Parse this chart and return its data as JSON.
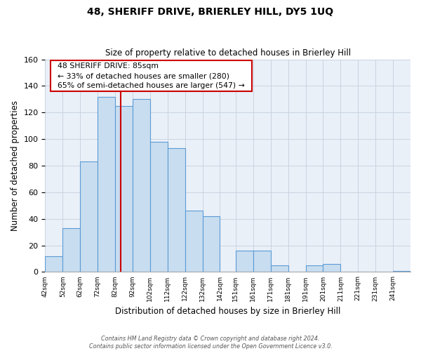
{
  "title": "48, SHERIFF DRIVE, BRIERLEY HILL, DY5 1UQ",
  "subtitle": "Size of property relative to detached houses in Brierley Hill",
  "xlabel": "Distribution of detached houses by size in Brierley Hill",
  "ylabel": "Number of detached properties",
  "bin_edges": [
    42,
    52,
    62,
    72,
    82,
    92,
    102,
    112,
    122,
    132,
    142,
    151,
    161,
    171,
    181,
    191,
    201,
    211,
    221,
    231,
    241,
    251
  ],
  "bar_heights": [
    12,
    33,
    83,
    132,
    125,
    130,
    98,
    93,
    46,
    42,
    0,
    16,
    16,
    5,
    0,
    5,
    6,
    0,
    0,
    0,
    1
  ],
  "bar_color": "#c8ddf0",
  "bar_edge_color": "#5b9bd5",
  "vline_x": 85,
  "vline_color": "#cc0000",
  "ylim": [
    0,
    160
  ],
  "yticks": [
    0,
    20,
    40,
    60,
    80,
    100,
    120,
    140,
    160
  ],
  "annotation_title": "48 SHERIFF DRIVE: 85sqm",
  "annotation_line1": "← 33% of detached houses are smaller (280)",
  "annotation_line2": "65% of semi-detached houses are larger (547) →",
  "footer_line1": "Contains HM Land Registry data © Crown copyright and database right 2024.",
  "footer_line2": "Contains public sector information licensed under the Open Government Licence v3.0.",
  "tick_labels": [
    "42sqm",
    "52sqm",
    "62sqm",
    "72sqm",
    "82sqm",
    "92sqm",
    "102sqm",
    "112sqm",
    "122sqm",
    "132sqm",
    "142sqm",
    "151sqm",
    "161sqm",
    "171sqm",
    "181sqm",
    "191sqm",
    "201sqm",
    "211sqm",
    "221sqm",
    "231sqm",
    "241sqm"
  ],
  "background_color": "#eaf0f8",
  "grid_color": "#c8d4e0"
}
